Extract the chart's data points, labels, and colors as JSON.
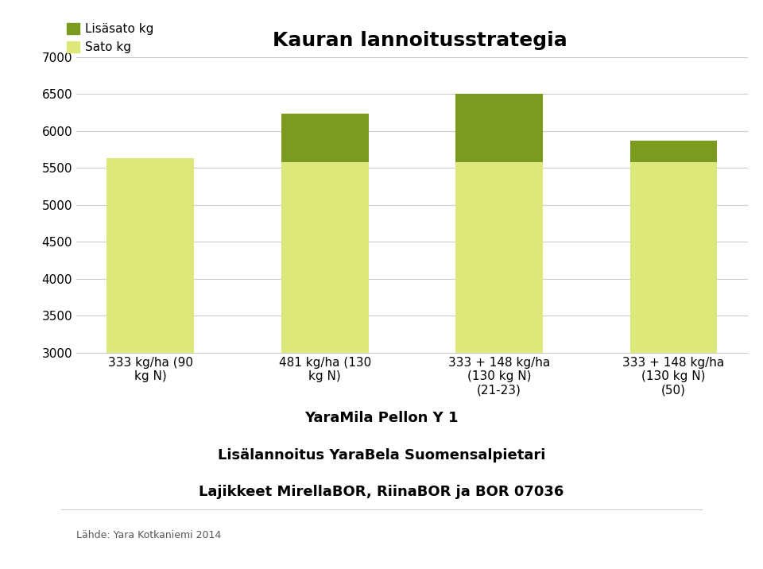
{
  "title": "Kauran lannoitusstrategia",
  "categories": [
    "333 kg/ha (90\nkg N)",
    "481 kg/ha (130\nkg N)",
    "333 + 148 kg/ha\n(130 kg N)\n(21-23)",
    "333 + 148 kg/ha\n(130 kg N)\n(50)"
  ],
  "sato_values": [
    5630,
    5580,
    5580,
    5580
  ],
  "lisasato_values": [
    0,
    650,
    920,
    290
  ],
  "sato_color": "#dde87a",
  "lisasato_color": "#7a9a20",
  "ylim": [
    3000,
    7000
  ],
  "yticks": [
    3000,
    3500,
    4000,
    4500,
    5000,
    5500,
    6000,
    6500,
    7000
  ],
  "legend_lisasato": "Lisäsato kg",
  "legend_sato": "Sato kg",
  "subtitle_line1": "YaraMila Pellon Y 1",
  "subtitle_line2": "Lisälannoitus YaraBela Suomensalpietari",
  "subtitle_line3": "Lajikkeet MirellaBOR, RiinaBOR ja BOR 07036",
  "source_text": "Lähde: Yara Kotkaniemi 2014",
  "background_color": "#ffffff",
  "grid_color": "#cccccc",
  "bar_width": 0.5,
  "title_fontsize": 18,
  "axis_fontsize": 11,
  "legend_fontsize": 11,
  "subtitle_fontsize": 13
}
